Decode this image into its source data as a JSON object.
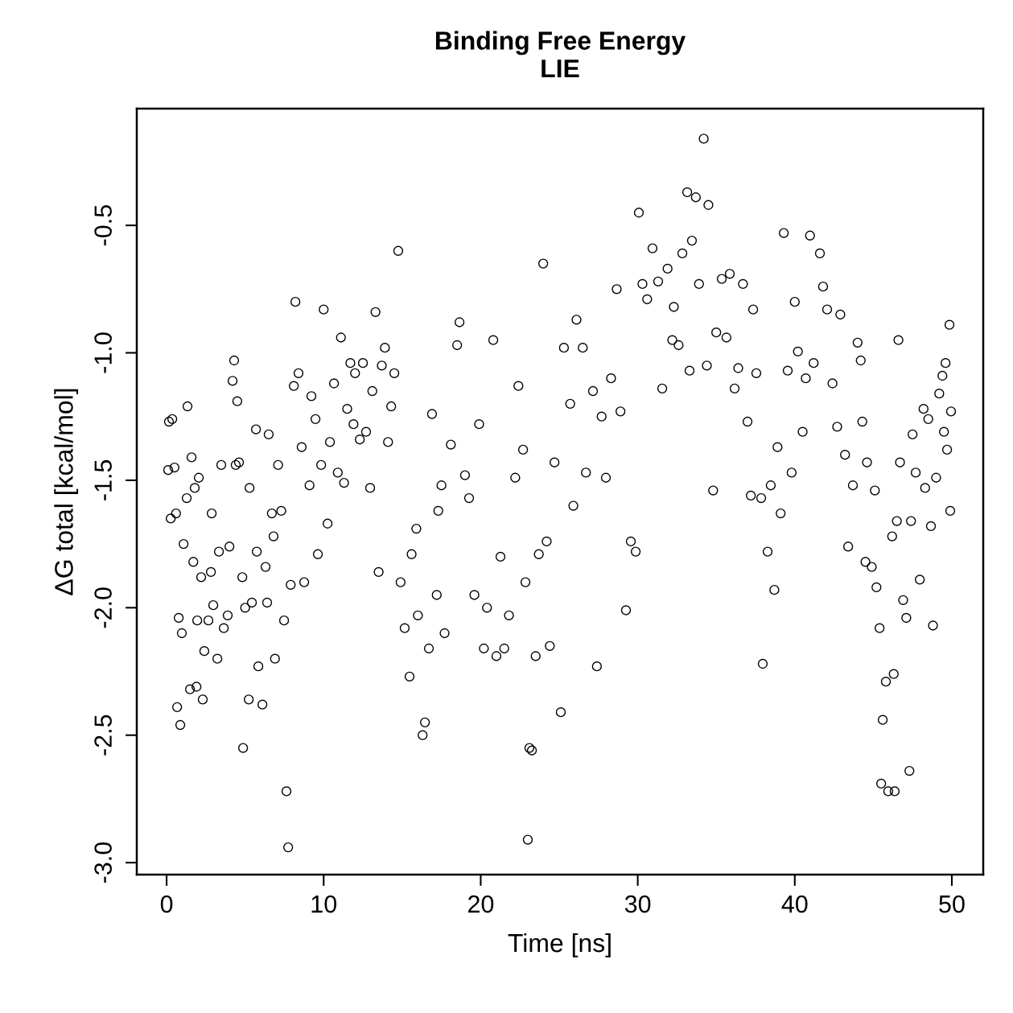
{
  "chart_data": {
    "type": "scatter",
    "title": "Binding Free Energy\nLIE",
    "xlabel": "Time [ns]",
    "ylabel": "ΔG total [kcal/mol]",
    "xlim": [
      -1.9,
      52.0
    ],
    "ylim": [
      -3.047,
      -0.042
    ],
    "xticks": [
      0,
      10,
      20,
      30,
      40,
      50
    ],
    "yticks": [
      {
        "value": -3,
        "label": "-3.0"
      },
      -2.5,
      {
        "value": -2,
        "label": "-2.0"
      },
      -1.5,
      {
        "value": -1,
        "label": "-1.0"
      },
      -0.5
    ],
    "grid": false,
    "legend": false,
    "marker": "circle",
    "series": [
      {
        "color": "#000000",
        "x": [
          0.1,
          0.15,
          0.36,
          0.26,
          0.5,
          0.6,
          0.67,
          0.87,
          0.77,
          0.97,
          1.08,
          1.33,
          1.28,
          1.49,
          1.59,
          1.7,
          1.79,
          1.9,
          1.95,
          2.05,
          2.2,
          2.3,
          2.4,
          2.66,
          2.82,
          2.87,
          2.97,
          3.23,
          3.33,
          3.48,
          3.64,
          3.89,
          4.0,
          4.2,
          4.3,
          4.4,
          4.5,
          4.61,
          4.82,
          4.87,
          5.0,
          5.28,
          5.23,
          5.43,
          5.69,
          5.74,
          5.84,
          6.1,
          6.3,
          6.4,
          6.5,
          6.7,
          6.81,
          6.9,
          7.1,
          7.3,
          7.48,
          7.63,
          7.74,
          7.9,
          8.1,
          8.2,
          8.4,
          8.6,
          8.76,
          9.1,
          9.22,
          9.48,
          9.63,
          9.84,
          10.0,
          10.25,
          10.4,
          10.66,
          10.9,
          11.1,
          11.3,
          11.5,
          11.7,
          11.9,
          12.0,
          12.3,
          12.5,
          12.7,
          12.96,
          13.1,
          13.3,
          13.5,
          13.7,
          13.9,
          14.1,
          14.3,
          14.5,
          14.75,
          14.9,
          15.16,
          15.47,
          15.6,
          15.9,
          16.0,
          16.3,
          16.45,
          16.7,
          16.9,
          17.2,
          17.3,
          17.5,
          17.7,
          18.1,
          18.5,
          18.65,
          19.0,
          19.26,
          19.6,
          19.9,
          20.2,
          20.4,
          20.8,
          21.0,
          21.26,
          21.5,
          21.8,
          22.2,
          22.4,
          22.7,
          22.85,
          23.0,
          23.1,
          23.26,
          23.5,
          23.7,
          23.98,
          24.2,
          24.4,
          24.7,
          25.1,
          25.3,
          25.7,
          25.9,
          26.1,
          26.5,
          26.7,
          27.15,
          27.4,
          27.7,
          27.97,
          28.3,
          28.66,
          28.9,
          29.25,
          29.56,
          29.87,
          30.07,
          30.3,
          30.6,
          30.94,
          31.3,
          31.56,
          31.9,
          32.2,
          32.3,
          32.6,
          32.84,
          33.15,
          33.3,
          33.45,
          33.7,
          33.9,
          34.2,
          34.4,
          34.5,
          34.8,
          35.0,
          35.35,
          35.65,
          35.86,
          36.17,
          36.4,
          36.7,
          36.99,
          37.2,
          37.35,
          37.55,
          37.86,
          37.96,
          38.27,
          38.47,
          38.7,
          38.9,
          39.1,
          39.3,
          39.55,
          39.8,
          40.0,
          40.2,
          40.5,
          40.7,
          40.97,
          41.2,
          41.6,
          41.8,
          42.06,
          42.4,
          42.7,
          42.9,
          43.2,
          43.4,
          43.7,
          44.0,
          44.2,
          44.3,
          44.5,
          44.6,
          44.9,
          45.1,
          45.2,
          45.4,
          45.5,
          45.6,
          45.8,
          45.95,
          46.2,
          46.3,
          46.36,
          46.5,
          46.6,
          46.7,
          46.9,
          47.1,
          47.3,
          47.4,
          47.5,
          47.7,
          47.96,
          48.2,
          48.3,
          48.5,
          48.67,
          48.8,
          49.0,
          49.2,
          49.4,
          49.5,
          49.6,
          49.7,
          49.85,
          49.9,
          49.95
        ],
        "values": [
          -1.46,
          -1.27,
          -1.26,
          -1.65,
          -1.45,
          -1.63,
          -2.39,
          -2.46,
          -2.04,
          -2.1,
          -1.75,
          -1.21,
          -1.57,
          -2.32,
          -1.41,
          -1.82,
          -1.53,
          -2.31,
          -2.05,
          -1.49,
          -1.88,
          -2.36,
          -2.17,
          -2.05,
          -1.86,
          -1.63,
          -1.99,
          -2.2,
          -1.78,
          -1.44,
          -2.08,
          -2.03,
          -1.76,
          -1.11,
          -1.03,
          -1.44,
          -1.19,
          -1.43,
          -1.88,
          -2.55,
          -2.0,
          -1.53,
          -2.36,
          -1.98,
          -1.3,
          -1.78,
          -2.23,
          -2.38,
          -1.84,
          -1.98,
          -1.32,
          -1.63,
          -1.72,
          -2.2,
          -1.44,
          -1.62,
          -2.05,
          -2.72,
          -2.94,
          -1.91,
          -1.13,
          -0.8,
          -1.08,
          -1.37,
          -1.9,
          -1.52,
          -1.17,
          -1.26,
          -1.79,
          -1.44,
          -0.83,
          -1.67,
          -1.35,
          -1.12,
          -1.47,
          -0.94,
          -1.51,
          -1.22,
          -1.04,
          -1.28,
          -1.08,
          -1.34,
          -1.04,
          -1.31,
          -1.53,
          -1.15,
          -0.84,
          -1.86,
          -1.05,
          -0.98,
          -1.35,
          -1.21,
          -1.08,
          -0.6,
          -1.9,
          -2.08,
          -2.27,
          -1.79,
          -1.69,
          -2.03,
          -2.5,
          -2.45,
          -2.16,
          -1.24,
          -1.95,
          -1.62,
          -1.52,
          -2.1,
          -1.36,
          -0.97,
          -0.88,
          -1.48,
          -1.57,
          -1.95,
          -1.28,
          -2.16,
          -2.0,
          -0.95,
          -2.19,
          -1.8,
          -2.16,
          -2.03,
          -1.49,
          -1.13,
          -1.38,
          -1.9,
          -2.91,
          -2.55,
          -2.56,
          -2.19,
          -1.79,
          -0.65,
          -1.74,
          -2.15,
          -1.43,
          -2.41,
          -0.98,
          -1.2,
          -1.6,
          -0.87,
          -0.98,
          -1.47,
          -1.15,
          -2.23,
          -1.25,
          -1.49,
          -1.1,
          -0.75,
          -1.23,
          -2.01,
          -1.74,
          -1.78,
          -0.45,
          -0.73,
          -0.79,
          -0.59,
          -0.72,
          -1.14,
          -0.67,
          -0.95,
          -0.82,
          -0.97,
          -0.61,
          -0.37,
          -1.07,
          -0.56,
          -0.39,
          -0.73,
          -0.16,
          -1.05,
          -0.42,
          -1.54,
          -0.92,
          -0.71,
          -0.94,
          -0.69,
          -1.14,
          -1.06,
          -0.73,
          -1.27,
          -1.56,
          -0.83,
          -1.08,
          -1.57,
          -2.22,
          -1.78,
          -1.52,
          -1.93,
          -1.37,
          -1.63,
          -0.53,
          -1.07,
          -1.47,
          -0.8,
          -0.995,
          -1.31,
          -1.1,
          -0.54,
          -1.04,
          -0.61,
          -0.74,
          -0.83,
          -1.12,
          -1.29,
          -0.85,
          -1.4,
          -1.76,
          -1.52,
          -0.96,
          -1.03,
          -1.27,
          -1.82,
          -1.43,
          -1.84,
          -1.54,
          -1.92,
          -2.08,
          -2.69,
          -2.44,
          -2.29,
          -2.72,
          -1.72,
          -2.26,
          -2.72,
          -1.66,
          -0.95,
          -1.43,
          -1.97,
          -2.04,
          -2.64,
          -1.66,
          -1.32,
          -1.47,
          -1.89,
          -1.22,
          -1.53,
          -1.26,
          -1.68,
          -2.07,
          -1.49,
          -1.16,
          -1.09,
          -1.31,
          -1.04,
          -1.38,
          -0.89,
          -1.62,
          -1.23
        ]
      }
    ]
  }
}
